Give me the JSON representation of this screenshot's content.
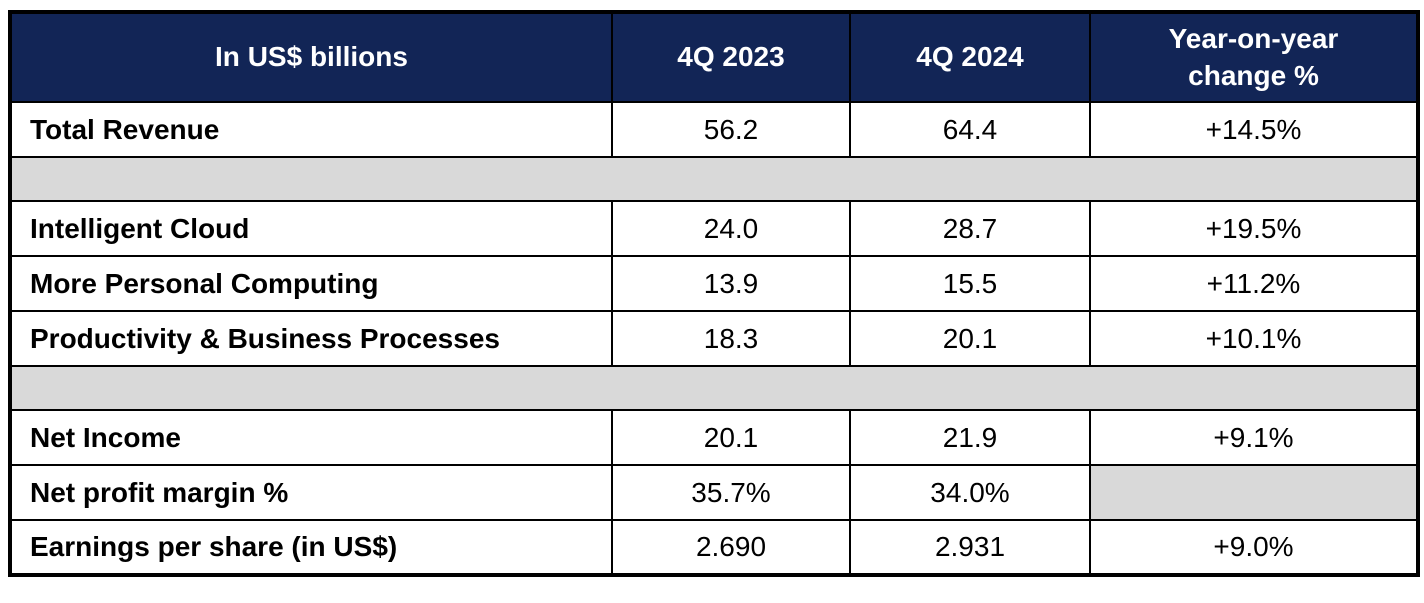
{
  "colors": {
    "header_bg": "#122556",
    "header_text": "#ffffff",
    "spacer_bg": "#d9d9d9",
    "border": "#000000",
    "body_text": "#000000",
    "page_bg": "#ffffff"
  },
  "table": {
    "header": {
      "cells": [
        "In US$ billions",
        "4Q 2023",
        "4Q 2024",
        "Year-on-year change %"
      ]
    },
    "rows": [
      {
        "kind": "data",
        "cells": [
          "Total Revenue",
          "56.2",
          "64.4",
          "+14.5%"
        ]
      },
      {
        "kind": "spacer"
      },
      {
        "kind": "data",
        "cells": [
          "Intelligent Cloud",
          "24.0",
          "28.7",
          "+19.5%"
        ]
      },
      {
        "kind": "data",
        "cells": [
          "More Personal Computing",
          "13.9",
          "15.5",
          "+11.2%"
        ]
      },
      {
        "kind": "data",
        "cells": [
          "Productivity & Business Processes",
          "18.3",
          "20.1",
          "+10.1%"
        ]
      },
      {
        "kind": "spacer"
      },
      {
        "kind": "data",
        "cells": [
          "Net Income",
          "20.1",
          "21.9",
          "+9.1%"
        ]
      },
      {
        "kind": "data",
        "cells": [
          "Net profit margin %",
          "35.7%",
          "34.0%",
          ""
        ],
        "yoy_gray": true
      },
      {
        "kind": "data",
        "cells": [
          "Earnings per share (in US$)",
          "2.690",
          "2.931",
          "+9.0%"
        ]
      }
    ]
  },
  "chart_data": {
    "type": "table",
    "title": "In US$ billions",
    "columns": [
      "In US$ billions",
      "4Q 2023",
      "4Q 2024",
      "Year-on-year change %"
    ],
    "rows": [
      [
        "Total Revenue",
        "56.2",
        "64.4",
        "+14.5%"
      ],
      [
        "Intelligent Cloud",
        "24.0",
        "28.7",
        "+19.5%"
      ],
      [
        "More Personal Computing",
        "13.9",
        "15.5",
        "+11.2%"
      ],
      [
        "Productivity & Business Processes",
        "18.3",
        "20.1",
        "+10.1%"
      ],
      [
        "Net Income",
        "20.1",
        "21.9",
        "+9.1%"
      ],
      [
        "Net profit margin %",
        "35.7%",
        "34.0%",
        ""
      ],
      [
        "Earnings per share (in US$)",
        "2.690",
        "2.931",
        "+9.0%"
      ]
    ],
    "series": [
      {
        "name": "4Q 2023",
        "values": [
          56.2,
          24.0,
          13.9,
          18.3,
          20.1,
          35.7,
          2.69
        ]
      },
      {
        "name": "4Q 2024",
        "values": [
          64.4,
          28.7,
          15.5,
          20.1,
          21.9,
          34.0,
          2.931
        ]
      },
      {
        "name": "Year-on-year change %",
        "values": [
          14.5,
          19.5,
          11.2,
          10.1,
          9.1,
          null,
          9.0
        ]
      }
    ],
    "layout_hints": {
      "header_background": "#122556",
      "spacer_rows_after": [
        "Total Revenue",
        "Productivity & Business Processes"
      ],
      "empty_gray_cell": "Net profit margin % / Year-on-year change %"
    }
  }
}
